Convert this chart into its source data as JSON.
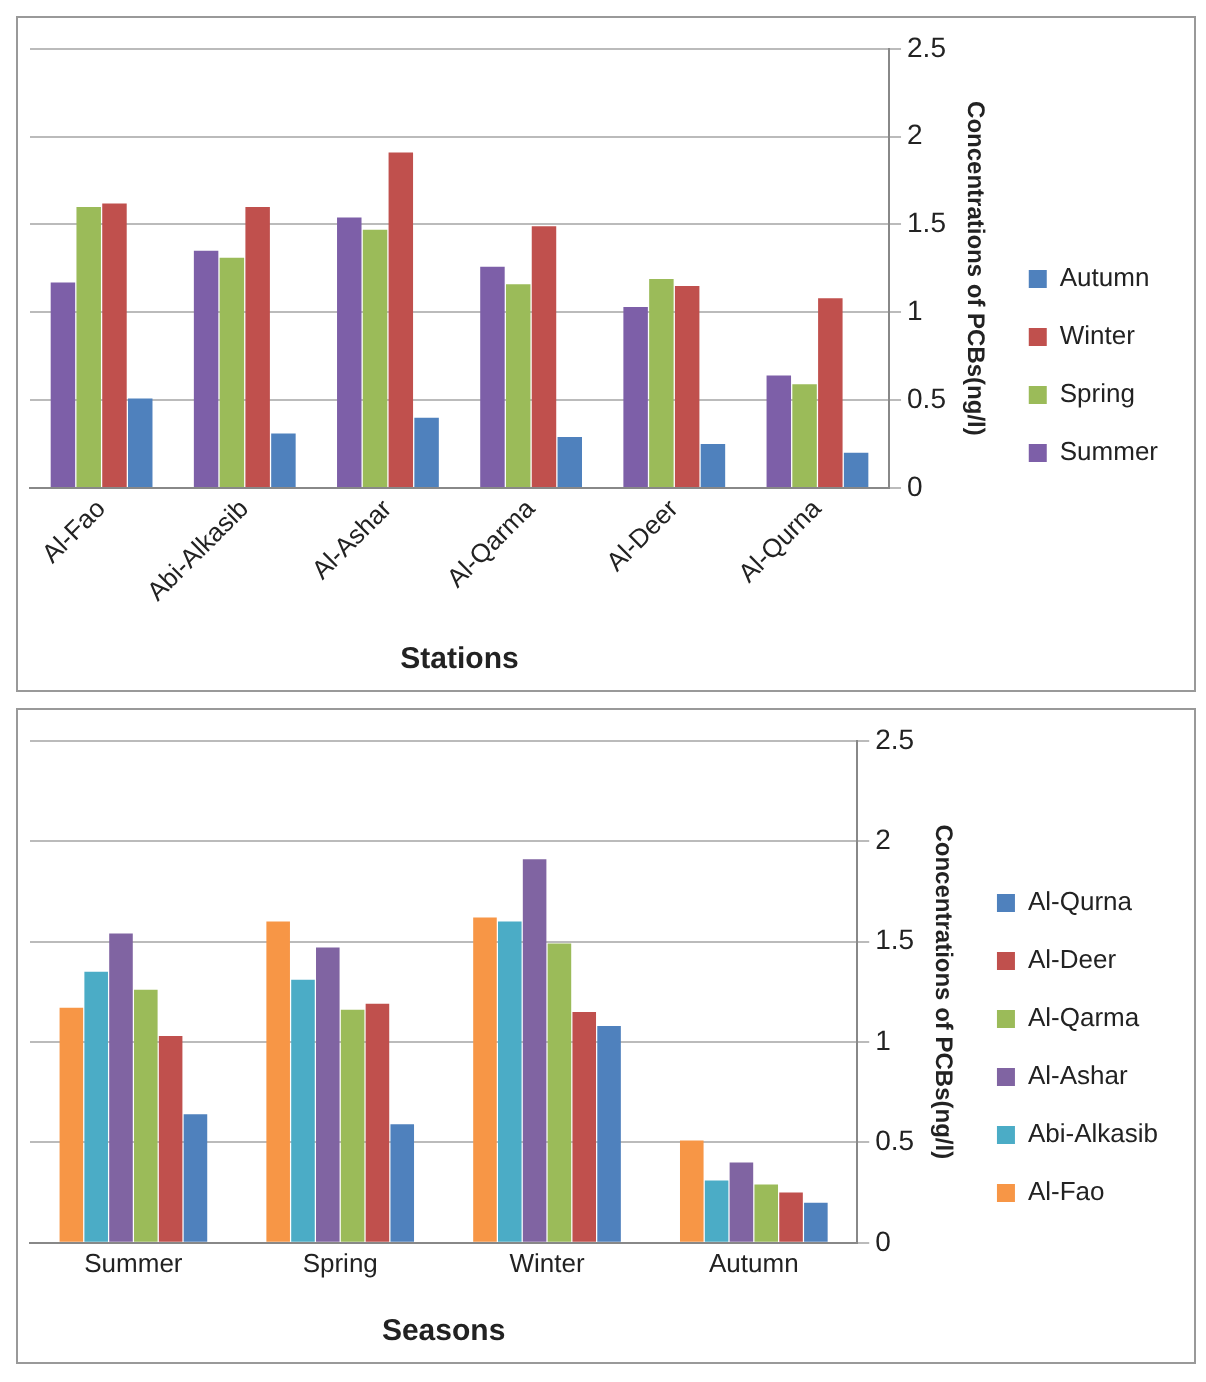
{
  "chart_data": [
    {
      "type": "bar",
      "xlabel": "Stations",
      "ylabel": "Concentrations of PCBs(ng/l)",
      "categories": [
        "Al-Fao",
        "Abi-Alkasib",
        "Al-Ashar",
        "Al-Qarma",
        "Al-Deer",
        "Al-Qurna"
      ],
      "series": [
        {
          "name": "Summer",
          "color": "#7d5fa8",
          "values": [
            1.17,
            1.35,
            1.54,
            1.26,
            1.03,
            0.64
          ]
        },
        {
          "name": "Spring",
          "color": "#9bbb59",
          "values": [
            1.6,
            1.31,
            1.47,
            1.16,
            1.19,
            0.59
          ]
        },
        {
          "name": "Winter",
          "color": "#c0504d",
          "values": [
            1.62,
            1.6,
            1.91,
            1.49,
            1.15,
            1.08
          ]
        },
        {
          "name": "Autumn",
          "color": "#4f81bd",
          "values": [
            0.51,
            0.31,
            0.4,
            0.29,
            0.25,
            0.2
          ]
        }
      ],
      "ylim": [
        0,
        2.5
      ],
      "yticks": [
        0,
        0.5,
        1,
        1.5,
        2,
        2.5
      ],
      "grid": "y",
      "legend": "right"
    },
    {
      "type": "bar",
      "xlabel": "Seasons",
      "ylabel": "Concentrations of PCBs(ng/l)",
      "categories": [
        "Summer",
        "Spring",
        "Winter",
        "Autumn"
      ],
      "series": [
        {
          "name": "Al-Fao",
          "color": "#f79646",
          "values": [
            1.17,
            1.6,
            1.62,
            0.51
          ]
        },
        {
          "name": "Abi-Alkasib",
          "color": "#4bacc6",
          "values": [
            1.35,
            1.31,
            1.6,
            0.31
          ]
        },
        {
          "name": "Al-Ashar",
          "color": "#8064a2",
          "values": [
            1.54,
            1.47,
            1.91,
            0.4
          ]
        },
        {
          "name": "Al-Qarma",
          "color": "#9bbb59",
          "values": [
            1.26,
            1.16,
            1.49,
            0.29
          ]
        },
        {
          "name": "Al-Deer",
          "color": "#c0504d",
          "values": [
            1.03,
            1.19,
            1.15,
            0.25
          ]
        },
        {
          "name": "Al-Qurna",
          "color": "#4f81bd",
          "values": [
            0.64,
            0.59,
            1.08,
            0.2
          ]
        }
      ],
      "ylim": [
        0,
        2.5
      ],
      "yticks": [
        0,
        0.5,
        1,
        1.5,
        2,
        2.5
      ],
      "grid": "y",
      "legend": "right"
    }
  ]
}
